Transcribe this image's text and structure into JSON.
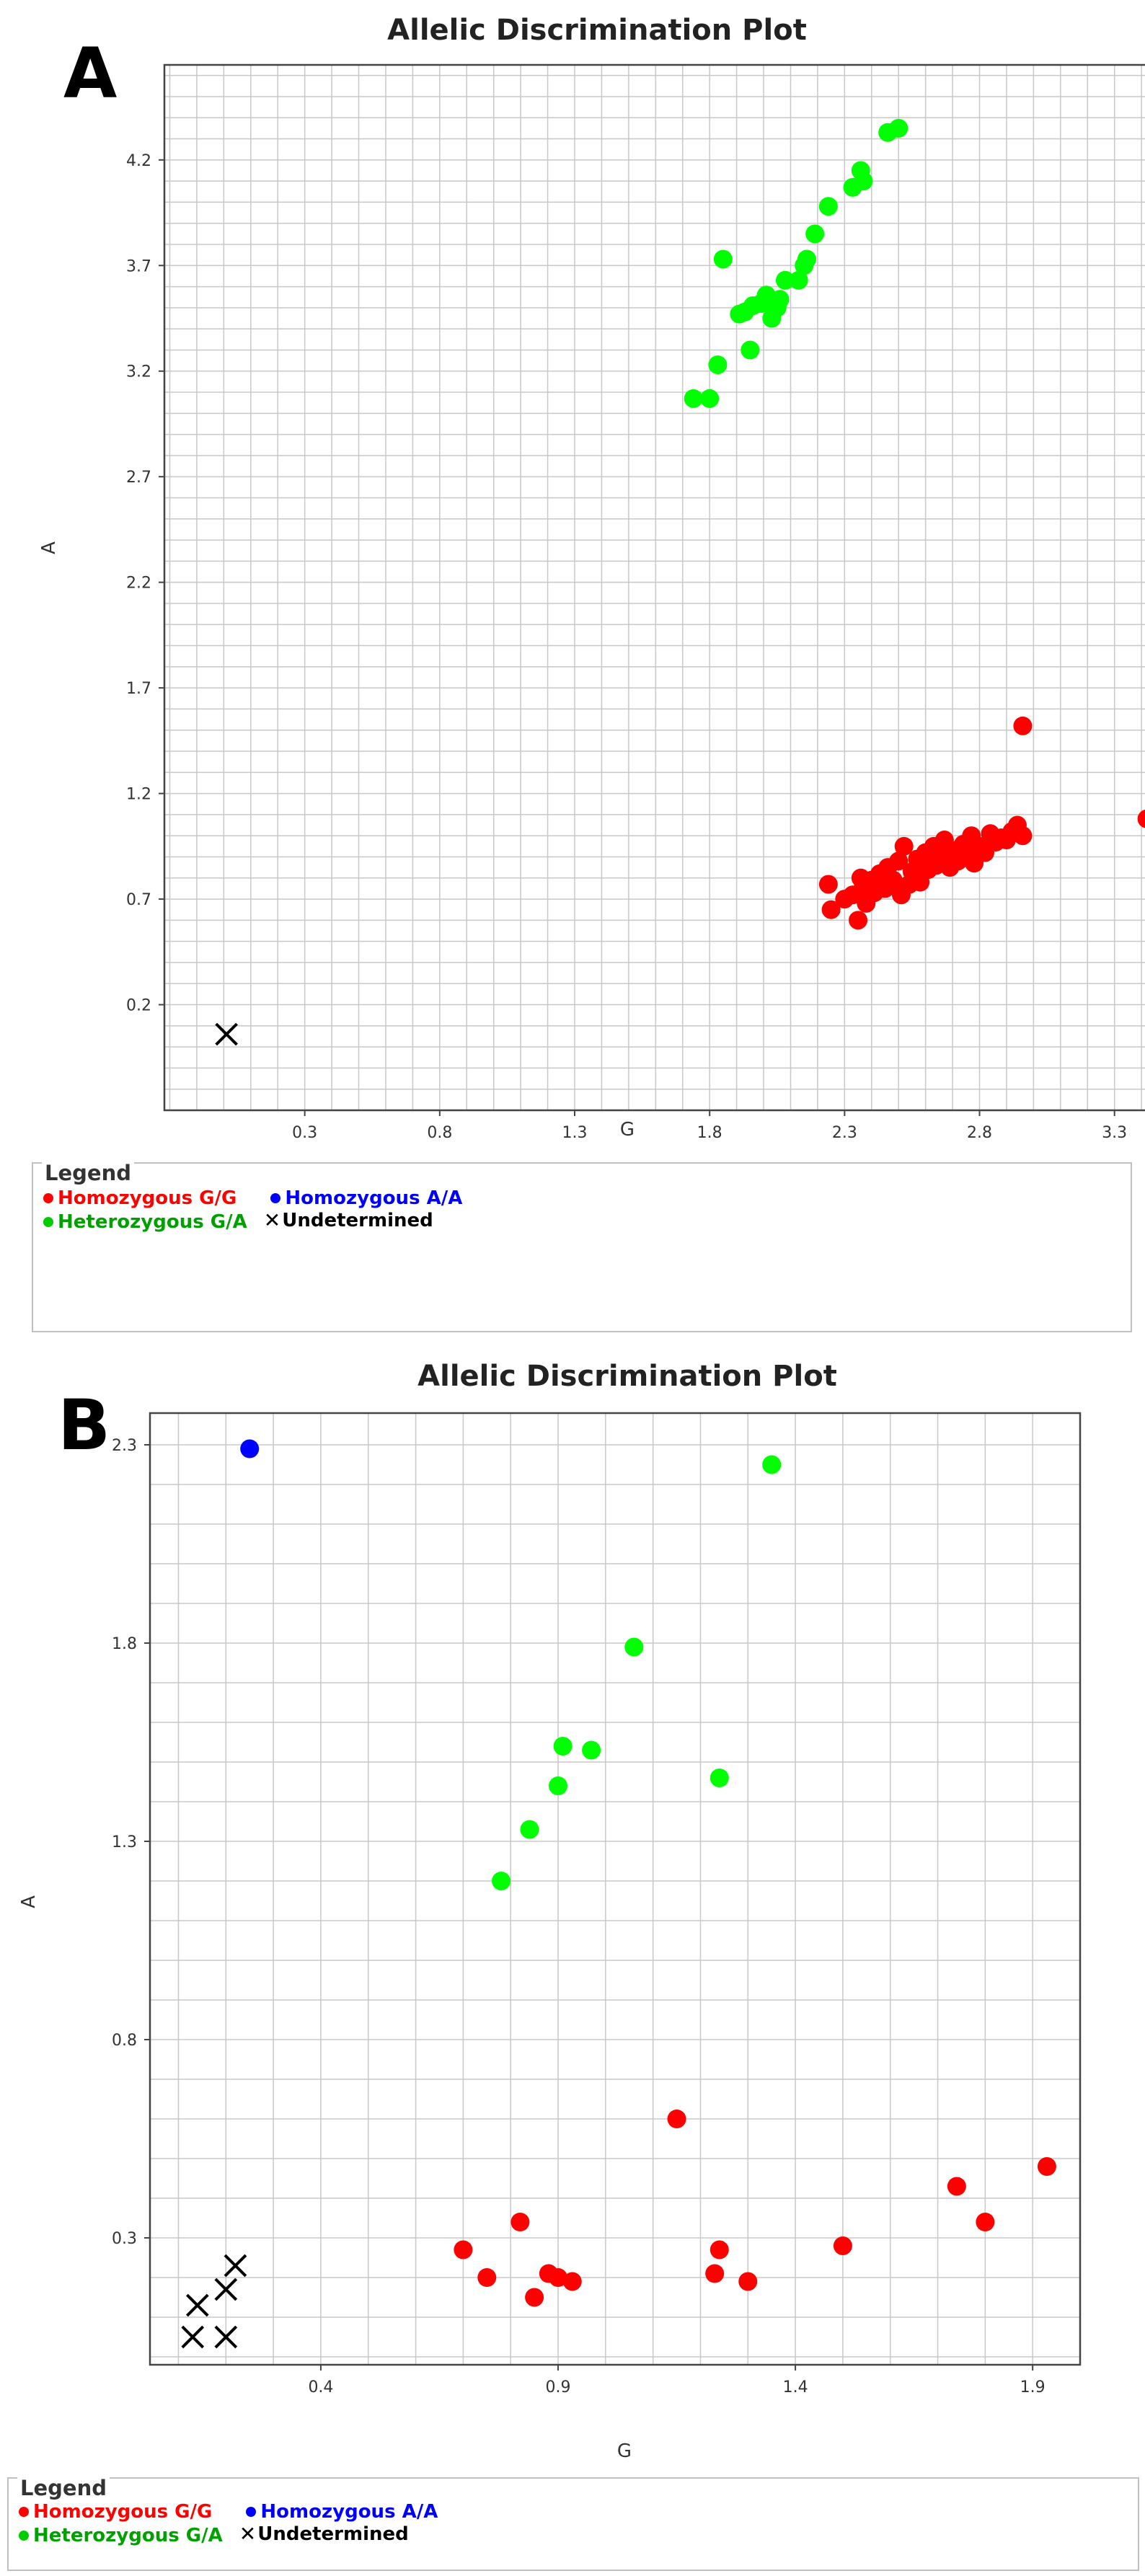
{
  "chart_data": [
    {
      "panel": "A",
      "type": "scatter",
      "title": "Allelic Discrimination Plot",
      "xlabel": "G",
      "ylabel": "A",
      "xlim": [
        -0.22,
        3.6
      ],
      "ylim": [
        -0.3,
        4.65
      ],
      "xticks": [
        "0.3",
        "0.8",
        "1.3",
        "1.8",
        "2.3",
        "2.8",
        "3.3"
      ],
      "yticks": [
        "0.2",
        "0.7",
        "1.2",
        "1.7",
        "2.2",
        "2.7",
        "3.2",
        "3.7",
        "4.2"
      ],
      "grid_x_step": 0.1,
      "grid_y_step": 0.1,
      "series": [
        {
          "name": "Homozygous G/G",
          "color": "#ff0000",
          "marker": "dot",
          "points": [
            [
              2.24,
              0.77
            ],
            [
              2.25,
              0.65
            ],
            [
              2.3,
              0.7
            ],
            [
              2.33,
              0.72
            ],
            [
              2.35,
              0.6
            ],
            [
              2.36,
              0.8
            ],
            [
              2.37,
              0.76
            ],
            [
              2.38,
              0.68
            ],
            [
              2.4,
              0.79
            ],
            [
              2.41,
              0.73
            ],
            [
              2.43,
              0.82
            ],
            [
              2.45,
              0.75
            ],
            [
              2.46,
              0.85
            ],
            [
              2.48,
              0.79
            ],
            [
              2.5,
              0.88
            ],
            [
              2.51,
              0.72
            ],
            [
              2.52,
              0.95
            ],
            [
              2.54,
              0.77
            ],
            [
              2.55,
              0.83
            ],
            [
              2.57,
              0.89
            ],
            [
              2.58,
              0.78
            ],
            [
              2.6,
              0.92
            ],
            [
              2.61,
              0.84
            ],
            [
              2.63,
              0.95
            ],
            [
              2.64,
              0.86
            ],
            [
              2.66,
              0.91
            ],
            [
              2.67,
              0.98
            ],
            [
              2.69,
              0.85
            ],
            [
              2.7,
              0.93
            ],
            [
              2.72,
              0.88
            ],
            [
              2.74,
              0.96
            ],
            [
              2.75,
              0.91
            ],
            [
              2.77,
              1.0
            ],
            [
              2.78,
              0.87
            ],
            [
              2.8,
              0.95
            ],
            [
              2.82,
              0.92
            ],
            [
              2.84,
              1.01
            ],
            [
              2.86,
              0.97
            ],
            [
              2.88,
              0.99
            ],
            [
              2.9,
              0.98
            ],
            [
              2.92,
              1.02
            ],
            [
              2.94,
              1.05
            ],
            [
              2.96,
              1.0
            ],
            [
              2.96,
              1.52
            ],
            [
              3.42,
              1.08
            ]
          ]
        },
        {
          "name": "Homozygous A/A",
          "color": "#0000ff",
          "marker": "dot",
          "points": []
        },
        {
          "name": "Heterozygous G/A",
          "color": "#00ff00",
          "marker": "dot",
          "points": [
            [
              1.74,
              3.07
            ],
            [
              1.8,
              3.07
            ],
            [
              1.83,
              3.23
            ],
            [
              1.85,
              3.73
            ],
            [
              1.91,
              3.47
            ],
            [
              1.93,
              3.48
            ],
            [
              1.95,
              3.3
            ],
            [
              1.96,
              3.51
            ],
            [
              1.99,
              3.52
            ],
            [
              2.01,
              3.56
            ],
            [
              2.03,
              3.45
            ],
            [
              2.05,
              3.5
            ],
            [
              2.06,
              3.54
            ],
            [
              2.08,
              3.63
            ],
            [
              2.13,
              3.63
            ],
            [
              2.15,
              3.7
            ],
            [
              2.16,
              3.73
            ],
            [
              2.19,
              3.85
            ],
            [
              2.24,
              3.98
            ],
            [
              2.33,
              4.07
            ],
            [
              2.36,
              4.15
            ],
            [
              2.37,
              4.1
            ],
            [
              2.46,
              4.33
            ],
            [
              2.5,
              4.35
            ]
          ]
        },
        {
          "name": "Undetermined",
          "color": "#000000",
          "marker": "x",
          "points": [
            [
              0.01,
              0.06
            ]
          ]
        }
      ],
      "legend": {
        "title": "Legend",
        "entries": [
          "Homozygous G/G",
          "Homozygous A/A",
          "Heterozygous G/A",
          "Undetermined"
        ]
      }
    },
    {
      "panel": "B",
      "type": "scatter",
      "title": "Allelic Discrimination Plot",
      "xlabel": "G",
      "ylabel": "A",
      "xlim": [
        0.04,
        2.0
      ],
      "ylim": [
        -0.02,
        2.38
      ],
      "xticks": [
        "0.4",
        "0.9",
        "1.4",
        "1.9"
      ],
      "yticks": [
        "0.3",
        "0.8",
        "1.3",
        "1.8",
        "2.3"
      ],
      "grid_x_step": 0.1,
      "grid_y_step": 0.1,
      "series": [
        {
          "name": "Homozygous G/G",
          "color": "#ff0000",
          "marker": "dot",
          "points": [
            [
              0.7,
              0.27
            ],
            [
              0.75,
              0.2
            ],
            [
              0.82,
              0.34
            ],
            [
              0.85,
              0.15
            ],
            [
              0.88,
              0.21
            ],
            [
              0.9,
              0.2
            ],
            [
              0.93,
              0.19
            ],
            [
              1.15,
              0.6
            ],
            [
              1.23,
              0.21
            ],
            [
              1.24,
              0.27
            ],
            [
              1.3,
              0.19
            ],
            [
              1.5,
              0.28
            ],
            [
              1.74,
              0.43
            ],
            [
              1.8,
              0.34
            ],
            [
              1.93,
              0.48
            ]
          ]
        },
        {
          "name": "Homozygous A/A",
          "color": "#0000ff",
          "marker": "dot",
          "points": [
            [
              0.25,
              2.29
            ]
          ]
        },
        {
          "name": "Heterozygous G/A",
          "color": "#00ff00",
          "marker": "dot",
          "points": [
            [
              0.78,
              1.2
            ],
            [
              0.84,
              1.33
            ],
            [
              0.9,
              1.44
            ],
            [
              0.91,
              1.54
            ],
            [
              0.97,
              1.53
            ],
            [
              1.06,
              1.79
            ],
            [
              1.24,
              1.46
            ],
            [
              1.35,
              2.25
            ]
          ]
        },
        {
          "name": "Undetermined",
          "color": "#000000",
          "marker": "x",
          "points": [
            [
              0.13,
              0.05
            ],
            [
              0.14,
              0.13
            ],
            [
              0.2,
              0.05
            ],
            [
              0.2,
              0.17
            ],
            [
              0.22,
              0.23
            ]
          ]
        }
      ],
      "legend": {
        "title": "Legend",
        "entries": [
          "Homozygous G/G",
          "Homozygous A/A",
          "Heterozygous G/A",
          "Undetermined"
        ]
      }
    }
  ]
}
